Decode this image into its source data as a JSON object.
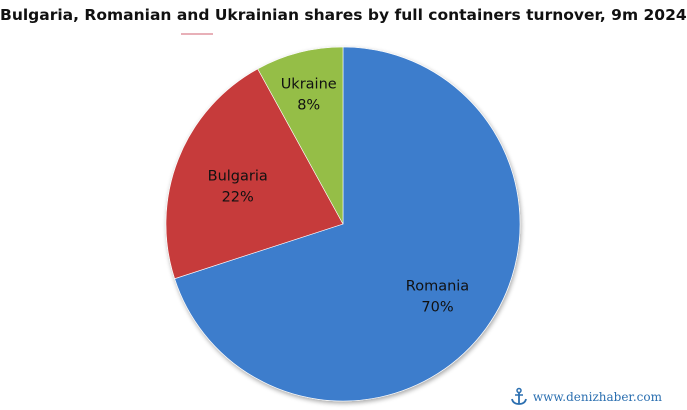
{
  "chart_data": {
    "type": "pie",
    "title": "Bulgaria, Romanian and Ukrainian shares by full containers turnover, 9m 2024",
    "slices": [
      {
        "name": "Romania",
        "value": 70,
        "label": "70%",
        "color": "#3e7dcc"
      },
      {
        "name": "Bulgaria",
        "value": 22,
        "label": "22%",
        "color": "#c63a3a"
      },
      {
        "name": "Ukraine",
        "value": 8,
        "label": "8%",
        "color": "#95be46"
      }
    ],
    "start_angle_deg": 0,
    "direction": "clockwise"
  },
  "watermark": {
    "text": "www.denizhaber.com",
    "icon": "anchor-icon"
  }
}
